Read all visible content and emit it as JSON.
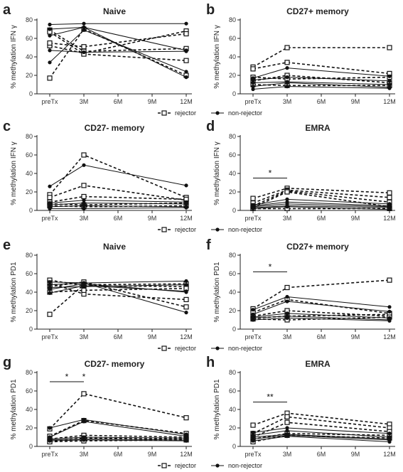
{
  "legend": {
    "rejector": "rejector",
    "non_rejector": "non-rejector"
  },
  "chart_data": [
    {
      "letter": "a",
      "title": "Naive",
      "type": "line",
      "x": [
        "preTx",
        "3M",
        "6M",
        "9M",
        "12M"
      ],
      "ylabel": "% methylation IFN γ",
      "ylim": [
        0,
        80
      ],
      "yticks": [
        0,
        20,
        40,
        60,
        80
      ],
      "significance": [],
      "series": [
        {
          "name": "rejector",
          "values": [
            17,
            70,
            null,
            null,
            20
          ]
        },
        {
          "name": "rejector",
          "values": [
            52,
            44,
            null,
            null,
            68
          ]
        },
        {
          "name": "rejector",
          "values": [
            55,
            51,
            null,
            null,
            65
          ]
        },
        {
          "name": "rejector",
          "values": [
            69,
            46,
            null,
            null,
            49
          ]
        },
        {
          "name": "rejector",
          "values": [
            67,
            43,
            null,
            null,
            36
          ]
        },
        {
          "name": "non-rejector",
          "values": [
            75,
            76,
            null,
            null,
            76
          ]
        },
        {
          "name": "non-rejector",
          "values": [
            70,
            72,
            null,
            null,
            18
          ]
        },
        {
          "name": "non-rejector",
          "values": [
            63,
            72,
            null,
            null,
            47
          ]
        },
        {
          "name": "non-rejector",
          "values": [
            47,
            45,
            null,
            null,
            46
          ]
        },
        {
          "name": "non-rejector",
          "values": [
            34,
            69,
            null,
            null,
            24
          ]
        }
      ]
    },
    {
      "letter": "b",
      "title": "CD27+ memory",
      "type": "line",
      "x": [
        "preTx",
        "3M",
        "6M",
        "9M",
        "12M"
      ],
      "ylabel": "% methylation IFN γ",
      "ylim": [
        0,
        80
      ],
      "yticks": [
        0,
        20,
        40,
        60,
        80
      ],
      "significance": [],
      "series": [
        {
          "name": "rejector",
          "values": [
            29,
            50,
            null,
            null,
            50
          ]
        },
        {
          "name": "rejector",
          "values": [
            27,
            34,
            null,
            null,
            22
          ]
        },
        {
          "name": "rejector",
          "values": [
            18,
            16,
            null,
            null,
            18
          ]
        },
        {
          "name": "rejector",
          "values": [
            14,
            20,
            null,
            null,
            12
          ]
        },
        {
          "name": "rejector",
          "values": [
            10,
            9,
            null,
            null,
            9
          ]
        },
        {
          "name": "non-rejector",
          "values": [
            17,
            28,
            null,
            null,
            19
          ]
        },
        {
          "name": "non-rejector",
          "values": [
            15,
            18,
            null,
            null,
            14
          ]
        },
        {
          "name": "non-rejector",
          "values": [
            12,
            13,
            null,
            null,
            10
          ]
        },
        {
          "name": "non-rejector",
          "values": [
            8,
            12,
            null,
            null,
            7
          ]
        },
        {
          "name": "non-rejector",
          "values": [
            5,
            8,
            null,
            null,
            6
          ]
        }
      ]
    },
    {
      "letter": "c",
      "title": "CD27- memory",
      "type": "line",
      "x": [
        "preTx",
        "3M",
        "6M",
        "9M",
        "12M"
      ],
      "ylabel": "% methylation IFN γ",
      "ylim": [
        0,
        80
      ],
      "yticks": [
        0,
        20,
        40,
        60,
        80
      ],
      "significance": [],
      "series": [
        {
          "name": "rejector",
          "values": [
            17,
            60,
            null,
            null,
            14
          ]
        },
        {
          "name": "rejector",
          "values": [
            14,
            27,
            null,
            null,
            11
          ]
        },
        {
          "name": "rejector",
          "values": [
            9,
            15,
            null,
            null,
            12
          ]
        },
        {
          "name": "rejector",
          "values": [
            7,
            6,
            null,
            null,
            8
          ]
        },
        {
          "name": "rejector",
          "values": [
            5,
            4,
            null,
            null,
            5
          ]
        },
        {
          "name": "non-rejector",
          "values": [
            26,
            49,
            null,
            null,
            27
          ]
        },
        {
          "name": "non-rejector",
          "values": [
            8,
            11,
            null,
            null,
            9
          ]
        },
        {
          "name": "non-rejector",
          "values": [
            6,
            8,
            null,
            null,
            7
          ]
        },
        {
          "name": "non-rejector",
          "values": [
            4,
            5,
            null,
            null,
            4
          ]
        },
        {
          "name": "non-rejector",
          "values": [
            2,
            2,
            null,
            null,
            3
          ]
        }
      ]
    },
    {
      "letter": "d",
      "title": "EMRA",
      "type": "line",
      "x": [
        "preTx",
        "3M",
        "6M",
        "9M",
        "12M"
      ],
      "ylabel": "% methylation IFN γ",
      "ylim": [
        0,
        80
      ],
      "yticks": [
        0,
        20,
        40,
        60,
        80
      ],
      "significance": [
        {
          "from": 0,
          "to": 1,
          "label": "*",
          "at": 35
        }
      ],
      "series": [
        {
          "name": "rejector",
          "values": [
            13,
            24,
            null,
            null,
            19
          ]
        },
        {
          "name": "rejector",
          "values": [
            8,
            22,
            null,
            null,
            14
          ]
        },
        {
          "name": "rejector",
          "values": [
            5,
            21,
            null,
            null,
            9
          ]
        },
        {
          "name": "rejector",
          "values": [
            3,
            20,
            null,
            null,
            4
          ]
        },
        {
          "name": "rejector",
          "values": [
            2,
            2,
            null,
            null,
            2
          ]
        },
        {
          "name": "non-rejector",
          "values": [
            6,
            12,
            null,
            null,
            7
          ]
        },
        {
          "name": "non-rejector",
          "values": [
            5,
            9,
            null,
            null,
            5
          ]
        },
        {
          "name": "non-rejector",
          "values": [
            4,
            7,
            null,
            null,
            4
          ]
        },
        {
          "name": "non-rejector",
          "values": [
            3,
            5,
            null,
            null,
            3
          ]
        },
        {
          "name": "non-rejector",
          "values": [
            2,
            4,
            null,
            null,
            1
          ]
        }
      ]
    },
    {
      "letter": "e",
      "title": "Naive",
      "type": "line",
      "x": [
        "preTx",
        "3M",
        "6M",
        "9M",
        "12M"
      ],
      "ylabel": "% methylation PD1",
      "ylim": [
        0,
        80
      ],
      "yticks": [
        0,
        20,
        40,
        60,
        80
      ],
      "significance": [],
      "series": [
        {
          "name": "rejector",
          "values": [
            16,
            48,
            null,
            null,
            49
          ]
        },
        {
          "name": "rejector",
          "values": [
            53,
            47,
            null,
            null,
            46
          ]
        },
        {
          "name": "rejector",
          "values": [
            50,
            38,
            null,
            null,
            32
          ]
        },
        {
          "name": "rejector",
          "values": [
            46,
            51,
            null,
            null,
            24
          ]
        },
        {
          "name": "rejector",
          "values": [
            40,
            42,
            null,
            null,
            44
          ]
        },
        {
          "name": "non-rejector",
          "values": [
            51,
            50,
            null,
            null,
            52
          ]
        },
        {
          "name": "non-rejector",
          "values": [
            48,
            50,
            null,
            null,
            18
          ]
        },
        {
          "name": "non-rejector",
          "values": [
            45,
            46,
            null,
            null,
            48
          ]
        },
        {
          "name": "non-rejector",
          "values": [
            43,
            49,
            null,
            null,
            40
          ]
        },
        {
          "name": "non-rejector",
          "values": [
            39,
            47,
            null,
            null,
            41
          ]
        }
      ]
    },
    {
      "letter": "f",
      "title": "CD27+ memory",
      "type": "line",
      "x": [
        "preTx",
        "3M",
        "6M",
        "9M",
        "12M"
      ],
      "ylabel": "% methylation PD1",
      "ylim": [
        0,
        80
      ],
      "yticks": [
        0,
        20,
        40,
        60,
        80
      ],
      "significance": [
        {
          "from": 0,
          "to": 1,
          "label": "*",
          "at": 62
        }
      ],
      "series": [
        {
          "name": "rejector",
          "values": [
            22,
            45,
            null,
            null,
            53
          ]
        },
        {
          "name": "rejector",
          "values": [
            18,
            32,
            null,
            null,
            17
          ]
        },
        {
          "name": "rejector",
          "values": [
            14,
            20,
            null,
            null,
            14
          ]
        },
        {
          "name": "rejector",
          "values": [
            12,
            14,
            null,
            null,
            16
          ]
        },
        {
          "name": "rejector",
          "values": [
            11,
            10,
            null,
            null,
            13
          ]
        },
        {
          "name": "non-rejector",
          "values": [
            21,
            35,
            null,
            null,
            24
          ]
        },
        {
          "name": "non-rejector",
          "values": [
            16,
            30,
            null,
            null,
            19
          ]
        },
        {
          "name": "non-rejector",
          "values": [
            13,
            17,
            null,
            null,
            12
          ]
        },
        {
          "name": "non-rejector",
          "values": [
            12,
            14,
            null,
            null,
            10
          ]
        },
        {
          "name": "non-rejector",
          "values": [
            10,
            12,
            null,
            null,
            9
          ]
        }
      ]
    },
    {
      "letter": "g",
      "title": "CD27- memory",
      "type": "line",
      "x": [
        "preTx",
        "3M",
        "6M",
        "9M",
        "12M"
      ],
      "ylabel": "% methylation PD1",
      "ylim": [
        0,
        80
      ],
      "yticks": [
        0,
        20,
        40,
        60,
        80
      ],
      "significance": [
        {
          "from": 0,
          "to": 1,
          "label": "*",
          "at": 70
        },
        {
          "from": 1,
          "to": 1,
          "label": "*",
          "at": 70
        }
      ],
      "series": [
        {
          "name": "rejector",
          "values": [
            19,
            57,
            null,
            null,
            31
          ]
        },
        {
          "name": "rejector",
          "values": [
            11,
            28,
            null,
            null,
            14
          ]
        },
        {
          "name": "rejector",
          "values": [
            8,
            12,
            null,
            null,
            10
          ]
        },
        {
          "name": "rejector",
          "values": [
            6,
            9,
            null,
            null,
            8
          ]
        },
        {
          "name": "rejector",
          "values": [
            5,
            6,
            null,
            null,
            7
          ]
        },
        {
          "name": "non-rejector",
          "values": [
            20,
            29,
            null,
            null,
            13
          ]
        },
        {
          "name": "non-rejector",
          "values": [
            10,
            27,
            null,
            null,
            11
          ]
        },
        {
          "name": "non-rejector",
          "values": [
            8,
            10,
            null,
            null,
            9
          ]
        },
        {
          "name": "non-rejector",
          "values": [
            7,
            8,
            null,
            null,
            7
          ]
        },
        {
          "name": "non-rejector",
          "values": [
            6,
            7,
            null,
            null,
            6
          ]
        }
      ]
    },
    {
      "letter": "h",
      "title": "EMRA",
      "type": "line",
      "x": [
        "preTx",
        "3M",
        "6M",
        "9M",
        "12M"
      ],
      "ylabel": "% methylation PD1",
      "ylim": [
        0,
        80
      ],
      "yticks": [
        0,
        20,
        40,
        60,
        80
      ],
      "significance": [
        {
          "from": 0,
          "to": 1,
          "label": "**",
          "at": 48
        }
      ],
      "series": [
        {
          "name": "rejector",
          "values": [
            23,
            36,
            null,
            null,
            24
          ]
        },
        {
          "name": "rejector",
          "values": [
            14,
            32,
            null,
            null,
            20
          ]
        },
        {
          "name": "rejector",
          "values": [
            10,
            26,
            null,
            null,
            16
          ]
        },
        {
          "name": "rejector",
          "values": [
            8,
            14,
            null,
            null,
            12
          ]
        },
        {
          "name": "rejector",
          "values": [
            5,
            12,
            null,
            null,
            9
          ]
        },
        {
          "name": "non-rejector",
          "values": [
            15,
            20,
            null,
            null,
            14
          ]
        },
        {
          "name": "non-rejector",
          "values": [
            12,
            17,
            null,
            null,
            10
          ]
        },
        {
          "name": "non-rejector",
          "values": [
            10,
            13,
            null,
            null,
            8
          ]
        },
        {
          "name": "non-rejector",
          "values": [
            8,
            12,
            null,
            null,
            7
          ]
        },
        {
          "name": "non-rejector",
          "values": [
            6,
            11,
            null,
            null,
            5
          ]
        }
      ]
    }
  ]
}
